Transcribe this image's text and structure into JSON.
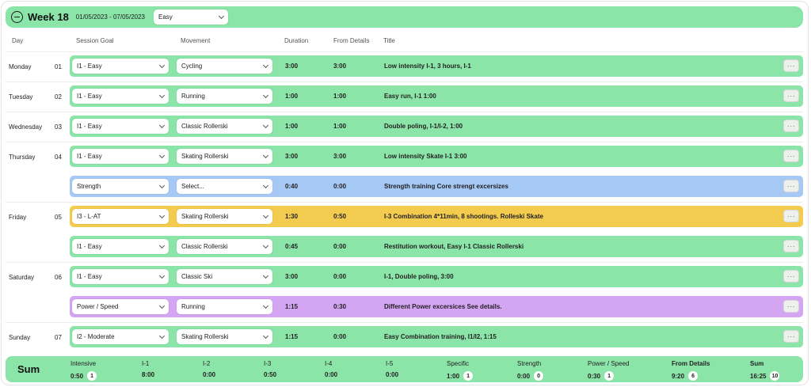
{
  "week": {
    "title": "Week 18",
    "dates": "01/05/2023 - 07/05/2023",
    "intensity": "Easy"
  },
  "columns": {
    "day": "Day",
    "goal": "Session Goal",
    "movement": "Movement",
    "duration": "Duration",
    "from_details": "From Details",
    "title": "Title"
  },
  "days": [
    {
      "name": "Monday",
      "num": "01"
    },
    {
      "name": "Tuesday",
      "num": "02"
    },
    {
      "name": "Wednesday",
      "num": "03"
    },
    {
      "name": "Thursday",
      "num": "04"
    },
    {
      "name": "Friday",
      "num": "05"
    },
    {
      "name": "Saturday",
      "num": "06"
    },
    {
      "name": "Sunday",
      "num": "07"
    }
  ],
  "sessions": [
    {
      "goal": "I1 - Easy",
      "movement": "Cycling",
      "duration": "3:00",
      "from_details": "3:00",
      "title": "Low intensity I-1, 3 hours, I-1",
      "color": "#8be4a8"
    },
    {
      "goal": "I1 - Easy",
      "movement": "Running",
      "duration": "1:00",
      "from_details": "1:00",
      "title": "Easy run, I-1 1:00",
      "color": "#8be4a8"
    },
    {
      "goal": "I1 - Easy",
      "movement": "Classic Rollerski",
      "duration": "1:00",
      "from_details": "1:00",
      "title": "Double poling, I-1/I-2, 1:00",
      "color": "#8be4a8"
    },
    {
      "goal": "I1 - Easy",
      "movement": "Skating Rollerski",
      "duration": "3:00",
      "from_details": "3:00",
      "title": "Low intensity Skate I-1 3:00",
      "color": "#8be4a8"
    },
    {
      "goal": "Strength",
      "movement": "Select...",
      "duration": "0:40",
      "from_details": "0:00",
      "title": "Strength training Core strengt excersizes",
      "color": "#a6c8f5"
    },
    {
      "goal": "I3 - L-AT",
      "movement": "Skating Rollerski",
      "duration": "1:30",
      "from_details": "0:50",
      "title": "I-3 Combination 4*11min, 8 shootings. Rolleski Skate",
      "color": "#f3cb4e"
    },
    {
      "goal": "I1 - Easy",
      "movement": "Classic Rollerski",
      "duration": "0:45",
      "from_details": "0:00",
      "title": "Restitution workout, Easy I-1 Classic Rollerski",
      "color": "#8be4a8"
    },
    {
      "goal": "I1 - Easy",
      "movement": "Classic Ski",
      "duration": "3:00",
      "from_details": "0:00",
      "title": "I-1, Double poling, 3:00",
      "color": "#8be4a8"
    },
    {
      "goal": "Power / Speed",
      "movement": "Running",
      "duration": "1:15",
      "from_details": "0:30",
      "title": "Different Power excersices See details.",
      "color": "#d4a5f3"
    },
    {
      "goal": "I2 - Moderate",
      "movement": "Skating Rollerski",
      "duration": "1:15",
      "from_details": "0:00",
      "title": "Easy Combination training, I1/I2, 1:15",
      "color": "#8be4a8"
    }
  ],
  "more_label": "···",
  "summary": {
    "title": "Sum",
    "items": [
      {
        "label": "Intensive",
        "value": "0:50",
        "count": "1"
      },
      {
        "label": "I-1",
        "value": "8:00"
      },
      {
        "label": "I-2",
        "value": "0:00"
      },
      {
        "label": "I-3",
        "value": "0:50"
      },
      {
        "label": "I-4",
        "value": "0:00"
      },
      {
        "label": "I-5",
        "value": "0:00"
      },
      {
        "label": "Specific",
        "value": "1:00",
        "count": "1"
      },
      {
        "label": "Strength",
        "value": "0:00",
        "count": "0"
      },
      {
        "label": "Power / Speed",
        "value": "0:30",
        "count": "1"
      },
      {
        "label": "From Details",
        "value": "9:20",
        "count": "6"
      },
      {
        "label": "Sum",
        "value": "16:25",
        "count": "10"
      }
    ]
  }
}
